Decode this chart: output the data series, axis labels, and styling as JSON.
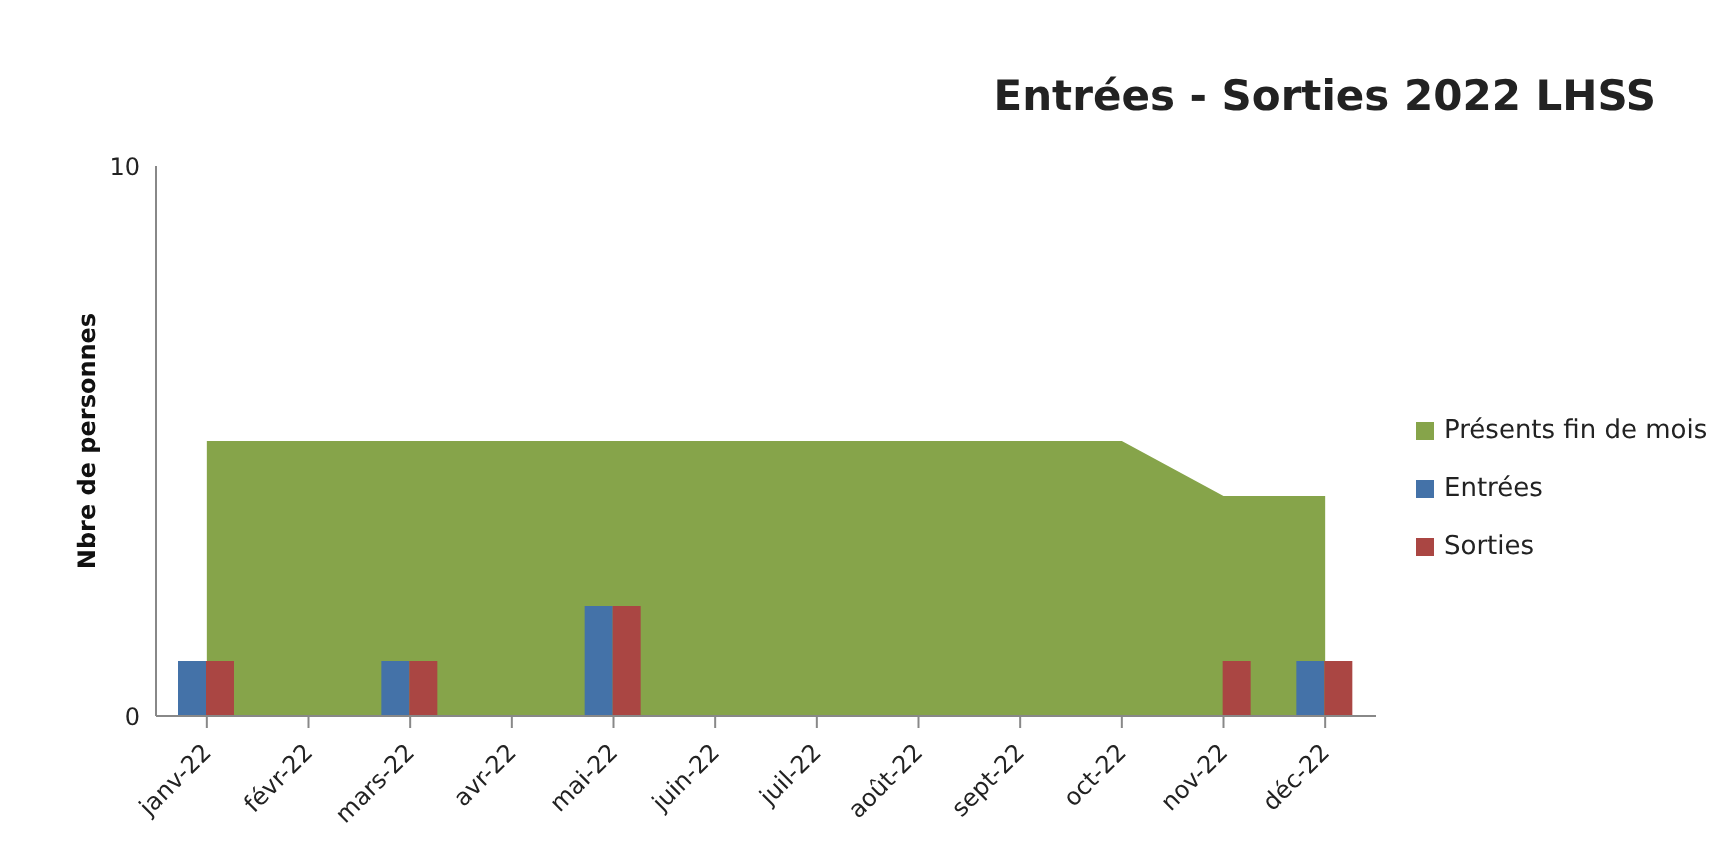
{
  "chart_data": {
    "type": "bar",
    "title": "Entrées - Sorties 2022 LHSS",
    "ylabel": "Nbre de personnes",
    "categories": [
      "janv-22",
      "févr-22",
      "mars-22",
      "avr-22",
      "mai-22",
      "juin-22",
      "juil-22",
      "août-22",
      "sept-22",
      "oct-22",
      "nov-22",
      "déc-22"
    ],
    "series": [
      {
        "name": "Présents fin de mois",
        "type": "area",
        "color": "#86a44a",
        "values": [
          5,
          5,
          5,
          5,
          5,
          5,
          5,
          5,
          5,
          5,
          4,
          4
        ]
      },
      {
        "name": "Entrées",
        "color": "#4472a8",
        "values": [
          1,
          0,
          1,
          0,
          2,
          0,
          0,
          0,
          0,
          0,
          0,
          1
        ]
      },
      {
        "name": "Sorties",
        "color": "#aa4643",
        "values": [
          1,
          0,
          1,
          0,
          2,
          0,
          0,
          0,
          0,
          0,
          1,
          1
        ]
      }
    ],
    "ylim": [
      0,
      10
    ],
    "yticks": [
      0,
      10
    ],
    "legend": "right"
  }
}
